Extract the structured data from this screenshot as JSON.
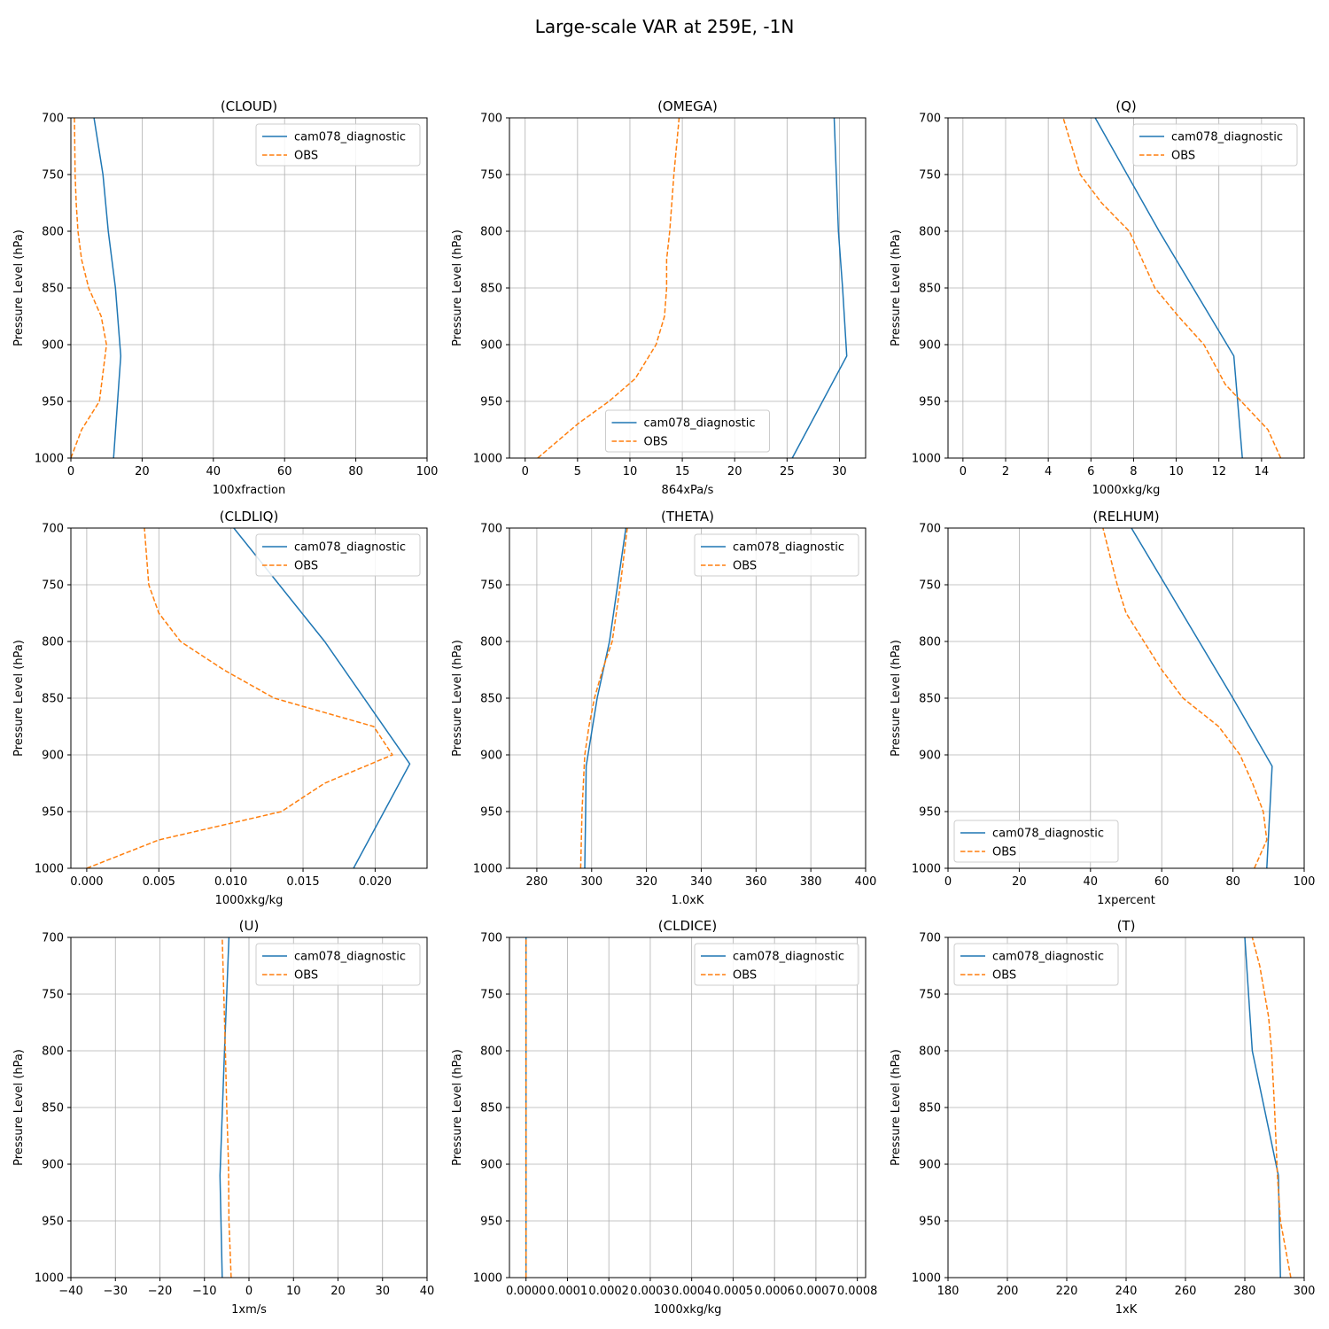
{
  "figure": {
    "title": "Large-scale VAR at 259E, -1N"
  },
  "legend_labels": [
    "cam078_diagnostic",
    "OBS"
  ],
  "colors": {
    "model": "#1f77b4",
    "obs": "#ff7f0e",
    "grid": "#b0b0b0",
    "axis": "#000000"
  },
  "chart_data": [
    {
      "type": "line",
      "title": "(CLOUD)",
      "xlabel": "100xfraction",
      "ylabel": "Pressure Level (hPa)",
      "xlim": [
        0,
        100
      ],
      "ylim": [
        1000,
        700
      ],
      "grid": true,
      "legend_loc": "upper right",
      "xticks": [
        0,
        20,
        40,
        60,
        80,
        100
      ],
      "xtick_labels": [
        "0",
        "20",
        "40",
        "60",
        "80",
        "100"
      ],
      "yticks": [
        700,
        750,
        800,
        850,
        900,
        950,
        1000
      ],
      "ytick_labels": [
        "700",
        "750",
        "800",
        "850",
        "900",
        "950",
        "1000"
      ],
      "series": [
        {
          "name": "cam078_diagnostic",
          "style": "solid",
          "x": [
            12,
            14,
            12.5,
            10.5,
            9,
            6.5
          ],
          "y": [
            1000,
            910,
            850,
            800,
            750,
            700
          ]
        },
        {
          "name": "OBS",
          "style": "dashed",
          "x": [
            0,
            3,
            8,
            10,
            8.5,
            5,
            3,
            2,
            1.5,
            1.2,
            1
          ],
          "y": [
            1000,
            975,
            950,
            900,
            875,
            850,
            825,
            800,
            775,
            750,
            700
          ]
        }
      ]
    },
    {
      "type": "line",
      "title": "(OMEGA)",
      "xlabel": "864xPa/s",
      "ylabel": "Pressure Level (hPa)",
      "xlim": [
        -1.5,
        32.5
      ],
      "ylim": [
        1000,
        700
      ],
      "grid": true,
      "legend_loc": "lower center",
      "xticks": [
        0,
        5,
        10,
        15,
        20,
        25,
        30
      ],
      "xtick_labels": [
        "0",
        "5",
        "10",
        "15",
        "20",
        "25",
        "30"
      ],
      "yticks": [
        700,
        750,
        800,
        850,
        900,
        950,
        1000
      ],
      "ytick_labels": [
        "700",
        "750",
        "800",
        "850",
        "900",
        "950",
        "1000"
      ],
      "series": [
        {
          "name": "cam078_diagnostic",
          "style": "solid",
          "x": [
            25.5,
            30.7,
            30.3,
            29.9,
            29.5
          ],
          "y": [
            1000,
            910,
            850,
            800,
            700
          ]
        },
        {
          "name": "OBS",
          "style": "dashed",
          "x": [
            1.2,
            5,
            8,
            10.5,
            12.5,
            13.3,
            13.5,
            13.5,
            13.8,
            14.2,
            14.7
          ],
          "y": [
            1000,
            970,
            950,
            930,
            900,
            875,
            850,
            825,
            800,
            750,
            700
          ]
        }
      ]
    },
    {
      "type": "line",
      "title": "(Q)",
      "xlabel": "1000xkg/kg",
      "ylabel": "Pressure Level (hPa)",
      "xlim": [
        -0.7,
        16
      ],
      "ylim": [
        1000,
        700
      ],
      "grid": true,
      "legend_loc": "upper right",
      "xticks": [
        0,
        2,
        4,
        6,
        8,
        10,
        12,
        14
      ],
      "xtick_labels": [
        "0",
        "2",
        "4",
        "6",
        "8",
        "10",
        "12",
        "14"
      ],
      "yticks": [
        700,
        750,
        800,
        850,
        900,
        950,
        1000
      ],
      "ytick_labels": [
        "700",
        "750",
        "800",
        "850",
        "900",
        "950",
        "1000"
      ],
      "series": [
        {
          "name": "cam078_diagnostic",
          "style": "solid",
          "x": [
            13.1,
            12.7,
            9.2,
            6.2
          ],
          "y": [
            1000,
            910,
            800,
            700
          ]
        },
        {
          "name": "OBS",
          "style": "dashed",
          "x": [
            14.9,
            14.3,
            12.3,
            11.3,
            10.1,
            9,
            8.4,
            7.8,
            6.5,
            5.5,
            4.7
          ],
          "y": [
            1000,
            975,
            935,
            900,
            875,
            850,
            825,
            800,
            775,
            750,
            700
          ]
        }
      ]
    },
    {
      "type": "line",
      "title": "(CLDLIQ)",
      "xlabel": "1000xkg/kg",
      "ylabel": "Pressure Level (hPa)",
      "xlim": [
        -0.0011,
        0.0236
      ],
      "ylim": [
        1000,
        700
      ],
      "grid": true,
      "legend_loc": "upper right",
      "xticks": [
        0,
        0.005,
        0.01,
        0.015,
        0.02
      ],
      "xtick_labels": [
        "0.000",
        "0.005",
        "0.010",
        "0.015",
        "0.020"
      ],
      "yticks": [
        700,
        750,
        800,
        850,
        900,
        950,
        1000
      ],
      "ytick_labels": [
        "700",
        "750",
        "800",
        "850",
        "900",
        "950",
        "1000"
      ],
      "series": [
        {
          "name": "cam078_diagnostic",
          "style": "solid",
          "x": [
            0.0185,
            0.0224,
            0.0165,
            0.0102
          ],
          "y": [
            1000,
            908,
            800,
            700
          ]
        },
        {
          "name": "OBS",
          "style": "dashed",
          "x": [
            0,
            0.005,
            0.0135,
            0.0165,
            0.0212,
            0.0199,
            0.013,
            0.0095,
            0.0065,
            0.005,
            0.0043,
            0.004
          ],
          "y": [
            1000,
            975,
            950,
            925,
            900,
            875,
            850,
            825,
            800,
            775,
            750,
            700
          ]
        }
      ]
    },
    {
      "type": "line",
      "title": "(THETA)",
      "xlabel": "1.0xK",
      "ylabel": "Pressure Level (hPa)",
      "xlim": [
        270,
        400
      ],
      "ylim": [
        1000,
        700
      ],
      "grid": true,
      "legend_loc": "upper right",
      "xticks": [
        280,
        300,
        320,
        340,
        360,
        380,
        400
      ],
      "xtick_labels": [
        "280",
        "300",
        "320",
        "340",
        "360",
        "380",
        "400"
      ],
      "yticks": [
        700,
        750,
        800,
        850,
        900,
        950,
        1000
      ],
      "ytick_labels": [
        "700",
        "750",
        "800",
        "850",
        "900",
        "950",
        "1000"
      ],
      "series": [
        {
          "name": "cam078_diagnostic",
          "style": "solid",
          "x": [
            297.5,
            297.8,
            298,
            302,
            306.5,
            312.5
          ],
          "y": [
            1000,
            950,
            910,
            850,
            800,
            700
          ]
        },
        {
          "name": "OBS",
          "style": "dashed",
          "x": [
            296,
            296.5,
            297.5,
            299,
            301,
            304,
            307.5,
            310.5,
            313
          ],
          "y": [
            1000,
            950,
            900,
            875,
            850,
            825,
            800,
            750,
            700
          ]
        }
      ]
    },
    {
      "type": "line",
      "title": "(RELHUM)",
      "xlabel": "1xpercent",
      "ylabel": "Pressure Level (hPa)",
      "xlim": [
        0,
        100
      ],
      "ylim": [
        1000,
        700
      ],
      "grid": true,
      "legend_loc": "lower left",
      "xticks": [
        0,
        20,
        40,
        60,
        80,
        100
      ],
      "xtick_labels": [
        "0",
        "20",
        "40",
        "60",
        "80",
        "100"
      ],
      "yticks": [
        700,
        750,
        800,
        850,
        900,
        950,
        1000
      ],
      "ytick_labels": [
        "700",
        "750",
        "800",
        "850",
        "900",
        "950",
        "1000"
      ],
      "series": [
        {
          "name": "cam078_diagnostic",
          "style": "solid",
          "x": [
            89.5,
            91,
            80,
            51.5
          ],
          "y": [
            1000,
            910,
            850,
            700
          ]
        },
        {
          "name": "OBS",
          "style": "dashed",
          "x": [
            86,
            89.5,
            88.5,
            85.5,
            82,
            76,
            66,
            60,
            55,
            50,
            47.5,
            43.5
          ],
          "y": [
            1000,
            975,
            950,
            925,
            900,
            875,
            850,
            825,
            800,
            775,
            750,
            700
          ]
        }
      ]
    },
    {
      "type": "line",
      "title": "(U)",
      "xlabel": "1xm/s",
      "ylabel": "Pressure Level (hPa)",
      "xlim": [
        -40,
        40
      ],
      "ylim": [
        1000,
        700
      ],
      "grid": true,
      "legend_loc": "upper right",
      "xticks": [
        -40,
        -30,
        -20,
        -10,
        0,
        10,
        20,
        30,
        40
      ],
      "xtick_labels": [
        "−40",
        "−30",
        "−20",
        "−10",
        "0",
        "10",
        "20",
        "30",
        "40"
      ],
      "yticks": [
        700,
        750,
        800,
        850,
        900,
        950,
        1000
      ],
      "ytick_labels": [
        "700",
        "750",
        "800",
        "850",
        "900",
        "950",
        "1000"
      ],
      "series": [
        {
          "name": "cam078_diagnostic",
          "style": "solid",
          "x": [
            -6,
            -6.5,
            -5.5,
            -4.5
          ],
          "y": [
            1000,
            910,
            800,
            700
          ]
        },
        {
          "name": "OBS",
          "style": "dashed",
          "x": [
            -4,
            -4.5,
            -4.6,
            -5,
            -5.3,
            -6
          ],
          "y": [
            1000,
            950,
            900,
            850,
            800,
            700
          ]
        }
      ]
    },
    {
      "type": "line",
      "title": "(CLDICE)",
      "xlabel": "1000xkg/kg",
      "ylabel": "Pressure Level (hPa)",
      "xlim": [
        -4e-05,
        0.00082
      ],
      "ylim": [
        1000,
        700
      ],
      "grid": true,
      "legend_loc": "upper right",
      "xticks": [
        0,
        0.0001,
        0.0002,
        0.0003,
        0.0004,
        0.0005,
        0.0006,
        0.0007,
        0.0008
      ],
      "xtick_labels": [
        "0.0000",
        "0.0001",
        "0.0002",
        "0.0003",
        "0.0004",
        "0.0005",
        "0.0006",
        "0.0007",
        "0.0008"
      ],
      "yticks": [
        700,
        750,
        800,
        850,
        900,
        950,
        1000
      ],
      "ytick_labels": [
        "700",
        "750",
        "800",
        "850",
        "900",
        "950",
        "1000"
      ],
      "series": [
        {
          "name": "cam078_diagnostic",
          "style": "solid",
          "x": [
            0,
            0
          ],
          "y": [
            1000,
            700
          ]
        },
        {
          "name": "OBS",
          "style": "dashed",
          "x": [
            0,
            0
          ],
          "y": [
            1000,
            700
          ]
        }
      ]
    },
    {
      "type": "line",
      "title": "(T)",
      "xlabel": "1xK",
      "ylabel": "Pressure Level (hPa)",
      "xlim": [
        180,
        300
      ],
      "ylim": [
        1000,
        700
      ],
      "grid": true,
      "legend_loc": "upper left",
      "xticks": [
        180,
        200,
        220,
        240,
        260,
        280,
        300
      ],
      "xtick_labels": [
        "180",
        "200",
        "220",
        "240",
        "260",
        "280",
        "300"
      ],
      "yticks": [
        700,
        750,
        800,
        850,
        900,
        950,
        1000
      ],
      "ytick_labels": [
        "700",
        "750",
        "800",
        "850",
        "900",
        "950",
        "1000"
      ],
      "series": [
        {
          "name": "cam078_diagnostic",
          "style": "solid",
          "x": [
            292,
            291.3,
            282.5,
            280
          ],
          "y": [
            1000,
            910,
            800,
            700
          ]
        },
        {
          "name": "OBS",
          "style": "dashed",
          "x": [
            295.5,
            292,
            291,
            290,
            289,
            288,
            285,
            282.5
          ],
          "y": [
            1000,
            950,
            910,
            850,
            800,
            770,
            725,
            700
          ]
        }
      ]
    }
  ]
}
